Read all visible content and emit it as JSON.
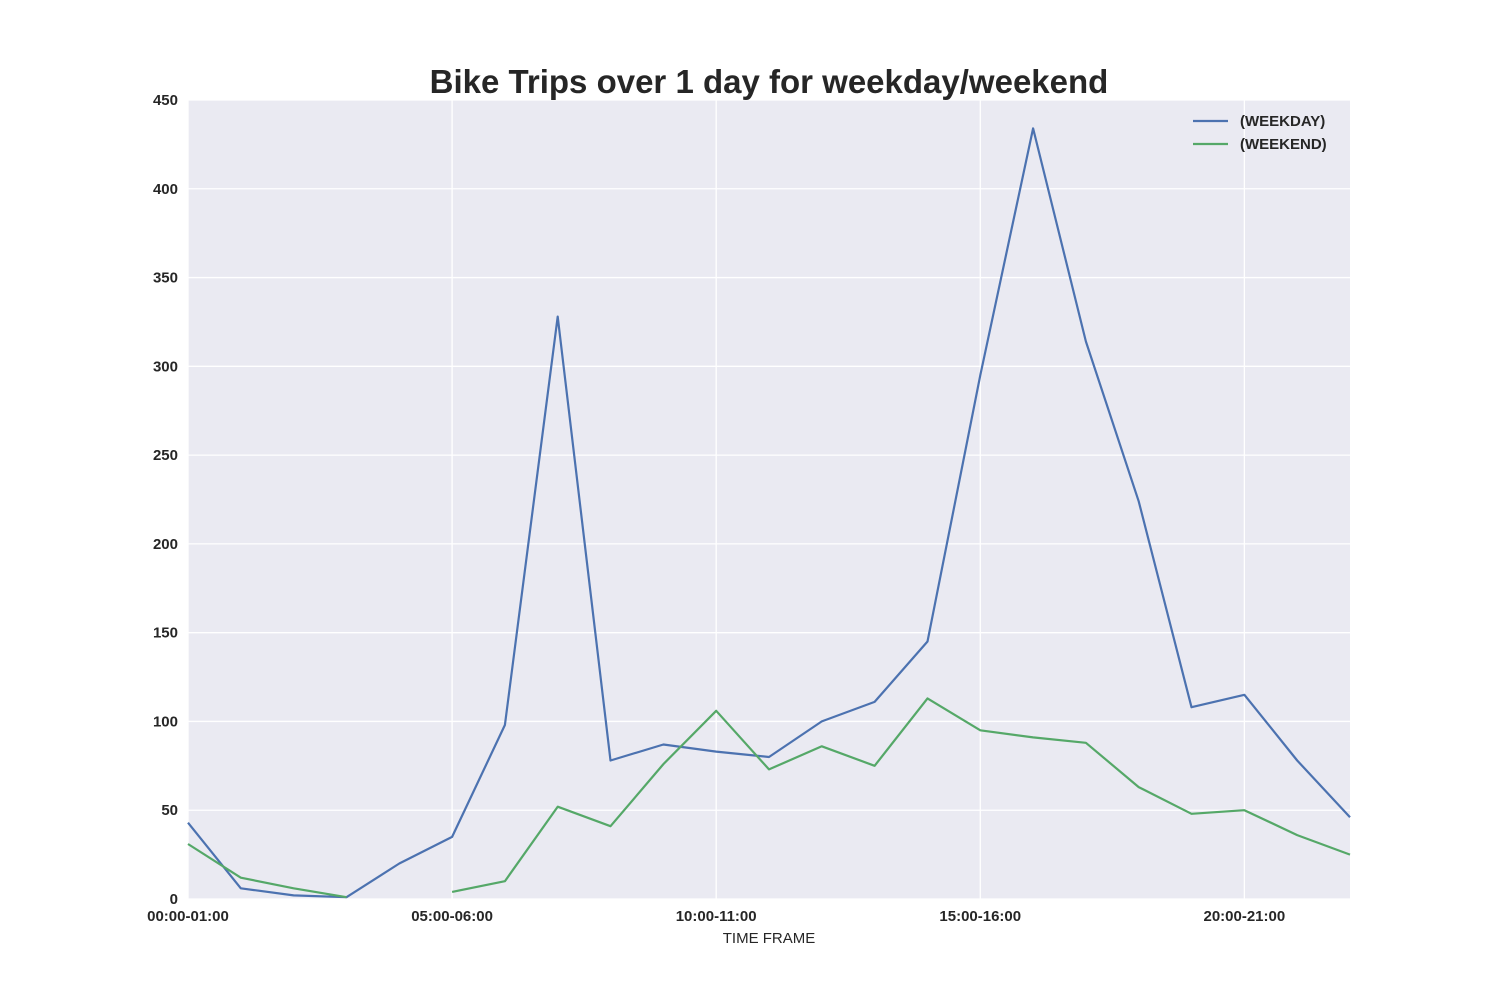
{
  "chart_data": {
    "type": "line",
    "title": "Bike Trips over 1 day for weekday/weekend",
    "xlabel": "TIME FRAME",
    "ylabel": "",
    "x_tick_labels": [
      {
        "index": 0,
        "label": "00:00-01:00"
      },
      {
        "index": 5,
        "label": "05:00-06:00"
      },
      {
        "index": 10,
        "label": "10:00-11:00"
      },
      {
        "index": 15,
        "label": "15:00-16:00"
      },
      {
        "index": 20,
        "label": "20:00-21:00"
      }
    ],
    "y_ticks": [
      0,
      50,
      100,
      150,
      200,
      250,
      300,
      350,
      400,
      450
    ],
    "xlim": [
      0,
      22
    ],
    "ylim": [
      0,
      450
    ],
    "grid": true,
    "legend_position": "top-right",
    "series": [
      {
        "name": "(WEEKDAY)",
        "color": "#4c72b0",
        "x": [
          0,
          1,
          2,
          3,
          4,
          5,
          6,
          7,
          8,
          9,
          10,
          11,
          12,
          13,
          14,
          15,
          16,
          17,
          18,
          19,
          20,
          21,
          22
        ],
        "values": [
          43,
          6,
          2,
          1,
          20,
          35,
          98,
          328,
          78,
          87,
          83,
          80,
          100,
          111,
          145,
          295,
          434,
          314,
          224,
          108,
          115,
          78,
          46
        ]
      },
      {
        "name": "(WEEKEND)",
        "color": "#55a868",
        "segments": [
          {
            "x": [
              0,
              1,
              2,
              3
            ],
            "values": [
              31,
              12,
              6,
              1
            ]
          },
          {
            "x": [
              5,
              6,
              7,
              8,
              9,
              10,
              11,
              12,
              13,
              14,
              15,
              16,
              17,
              18,
              19,
              20,
              21,
              22
            ],
            "values": [
              4,
              10,
              52,
              41,
              76,
              106,
              73,
              86,
              75,
              113,
              95,
              91,
              88,
              63,
              48,
              50,
              36,
              25
            ]
          }
        ]
      }
    ]
  }
}
